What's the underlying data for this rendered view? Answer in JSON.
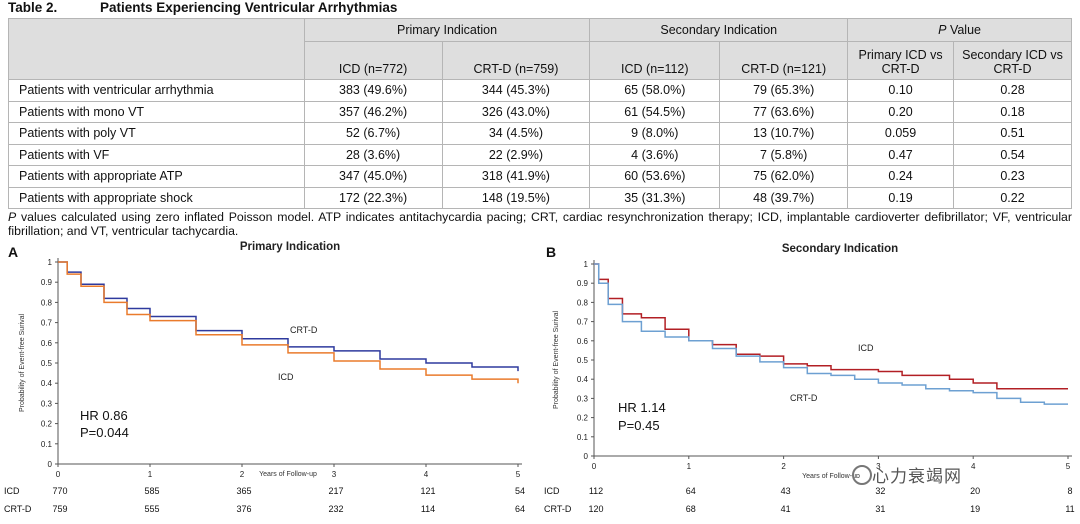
{
  "table": {
    "number": "Table 2.",
    "title": "Patients Experiencing Ventricular Arrhythmias",
    "group_headers": [
      "Primary Indication",
      "Secondary Indication"
    ],
    "pvalue_header_italic": "P",
    "pvalue_header_rest": " Value",
    "sub_headers": [
      "ICD (n=772)",
      "CRT-D (n=759)",
      "ICD (n=112)",
      "CRT-D (n=121)",
      "Primary ICD vs CRT-D",
      "Secondary ICD vs CRT-D"
    ],
    "rows": [
      {
        "label": "Patients with ventricular arrhythmia",
        "c1": "383 (49.6%)",
        "c2": "344 (45.3%)",
        "c3": "65 (58.0%)",
        "c4": "79 (65.3%)",
        "p1": "0.10",
        "p2": "0.28"
      },
      {
        "label": "Patients with mono VT",
        "c1": "357 (46.2%)",
        "c2": "326 (43.0%)",
        "c3": "61 (54.5%)",
        "c4": "77 (63.6%)",
        "p1": "0.20",
        "p2": "0.18"
      },
      {
        "label": "Patients with poly VT",
        "c1": "52 (6.7%)",
        "c2": "34 (4.5%)",
        "c3": "9 (8.0%)",
        "c4": "13 (10.7%)",
        "p1": "0.059",
        "p2": "0.51"
      },
      {
        "label": "Patients with VF",
        "c1": "28 (3.6%)",
        "c2": "22 (2.9%)",
        "c3": "4 (3.6%)",
        "c4": "7 (5.8%)",
        "p1": "0.47",
        "p2": "0.54"
      },
      {
        "label": "Patients with appropriate ATP",
        "c1": "347 (45.0%)",
        "c2": "318 (41.9%)",
        "c3": "60 (53.6%)",
        "c4": "75 (62.0%)",
        "p1": "0.24",
        "p2": "0.23"
      },
      {
        "label": "Patients with appropriate shock",
        "c1": "172 (22.3%)",
        "c2": "148 (19.5%)",
        "c3": "35 (31.3%)",
        "c4": "48 (39.7%)",
        "p1": "0.19",
        "p2": "0.22"
      }
    ],
    "footnote_italic": "P",
    "footnote_rest": " values calculated using zero inflated Poisson model. ATP indicates antitachycardia pacing; CRT, cardiac resynchronization therapy; ICD, implantable cardioverter defibrillator; VF, ventricular fibrillation; and VT, ventricular tachycardia."
  },
  "watermark": "心力衰竭网",
  "chart_data": [
    {
      "type": "line",
      "panel": "A",
      "title": "Primary Indication",
      "xlabel": "Years of Follow-up",
      "ylabel": "Probability of Event-free Surival",
      "xlim": [
        0,
        5
      ],
      "ylim": [
        0,
        1
      ],
      "xticks": [
        "0",
        "1",
        "2",
        "3",
        "4",
        "5"
      ],
      "yticks": [
        "0",
        "0.1",
        "0.2",
        "0.3",
        "0.4",
        "0.5",
        "0.6",
        "0.7",
        "0.8",
        "0.9",
        "1"
      ],
      "annotation_hr": "HR 0.86",
      "annotation_p": "P=0.044",
      "series": [
        {
          "name": "CRT-D",
          "color": "#2e3a9e",
          "x": [
            0,
            0.1,
            0.25,
            0.5,
            0.75,
            1,
            1.5,
            2,
            2.5,
            3,
            3.5,
            4,
            4.5,
            5
          ],
          "y": [
            1,
            0.95,
            0.89,
            0.82,
            0.77,
            0.73,
            0.66,
            0.62,
            0.58,
            0.56,
            0.52,
            0.5,
            0.48,
            0.46
          ]
        },
        {
          "name": "ICD",
          "color": "#ea7b2c",
          "x": [
            0,
            0.1,
            0.25,
            0.5,
            0.75,
            1,
            1.5,
            2,
            2.5,
            3,
            3.5,
            4,
            4.5,
            5
          ],
          "y": [
            1,
            0.94,
            0.88,
            0.8,
            0.74,
            0.71,
            0.64,
            0.59,
            0.55,
            0.51,
            0.47,
            0.44,
            0.42,
            0.4
          ]
        }
      ],
      "risk_table": [
        {
          "label": "ICD",
          "values": [
            "770",
            "585",
            "365",
            "217",
            "121",
            "54"
          ]
        },
        {
          "label": "CRT-D",
          "values": [
            "759",
            "555",
            "376",
            "232",
            "114",
            "64"
          ]
        }
      ]
    },
    {
      "type": "line",
      "panel": "B",
      "title": "Secondary Indication",
      "xlabel": "Years of Follow-up",
      "ylabel": "Probability of Event-free Surival",
      "xlim": [
        0,
        5
      ],
      "ylim": [
        0,
        1
      ],
      "xticks": [
        "0",
        "1",
        "2",
        "3",
        "4",
        "5"
      ],
      "yticks": [
        "0",
        "0.1",
        "0.2",
        "0.3",
        "0.4",
        "0.5",
        "0.6",
        "0.7",
        "0.8",
        "0.9",
        "1"
      ],
      "annotation_hr": "HR 1.14",
      "annotation_p": "P=0.45",
      "series": [
        {
          "name": "ICD",
          "color": "#b21f24",
          "x": [
            0,
            0.05,
            0.15,
            0.3,
            0.5,
            0.75,
            1,
            1.25,
            1.5,
            1.75,
            2,
            2.25,
            2.5,
            2.75,
            3,
            3.25,
            3.5,
            3.75,
            4,
            4.25,
            4.5,
            4.75,
            5
          ],
          "y": [
            1,
            0.92,
            0.82,
            0.74,
            0.72,
            0.66,
            0.6,
            0.58,
            0.53,
            0.52,
            0.48,
            0.47,
            0.45,
            0.45,
            0.44,
            0.42,
            0.42,
            0.4,
            0.38,
            0.35,
            0.35,
            0.35,
            0.35
          ]
        },
        {
          "name": "CRT-D",
          "color": "#6da0d2",
          "x": [
            0,
            0.05,
            0.15,
            0.3,
            0.5,
            0.75,
            1,
            1.25,
            1.5,
            1.75,
            2,
            2.25,
            2.5,
            2.75,
            3,
            3.25,
            3.5,
            3.75,
            4,
            4.25,
            4.5,
            4.75,
            5
          ],
          "y": [
            1,
            0.9,
            0.79,
            0.7,
            0.65,
            0.62,
            0.6,
            0.56,
            0.52,
            0.49,
            0.46,
            0.43,
            0.42,
            0.4,
            0.38,
            0.37,
            0.35,
            0.34,
            0.33,
            0.3,
            0.28,
            0.27,
            0.27
          ]
        }
      ],
      "curve_labels": [
        {
          "text": "ICD"
        },
        {
          "text": "CRT-D"
        }
      ],
      "risk_table": [
        {
          "label": "ICD",
          "values": [
            "112",
            "64",
            "43",
            "32",
            "20",
            "8"
          ]
        },
        {
          "label": "CRT-D",
          "values": [
            "120",
            "68",
            "41",
            "31",
            "19",
            "11"
          ]
        }
      ]
    }
  ]
}
